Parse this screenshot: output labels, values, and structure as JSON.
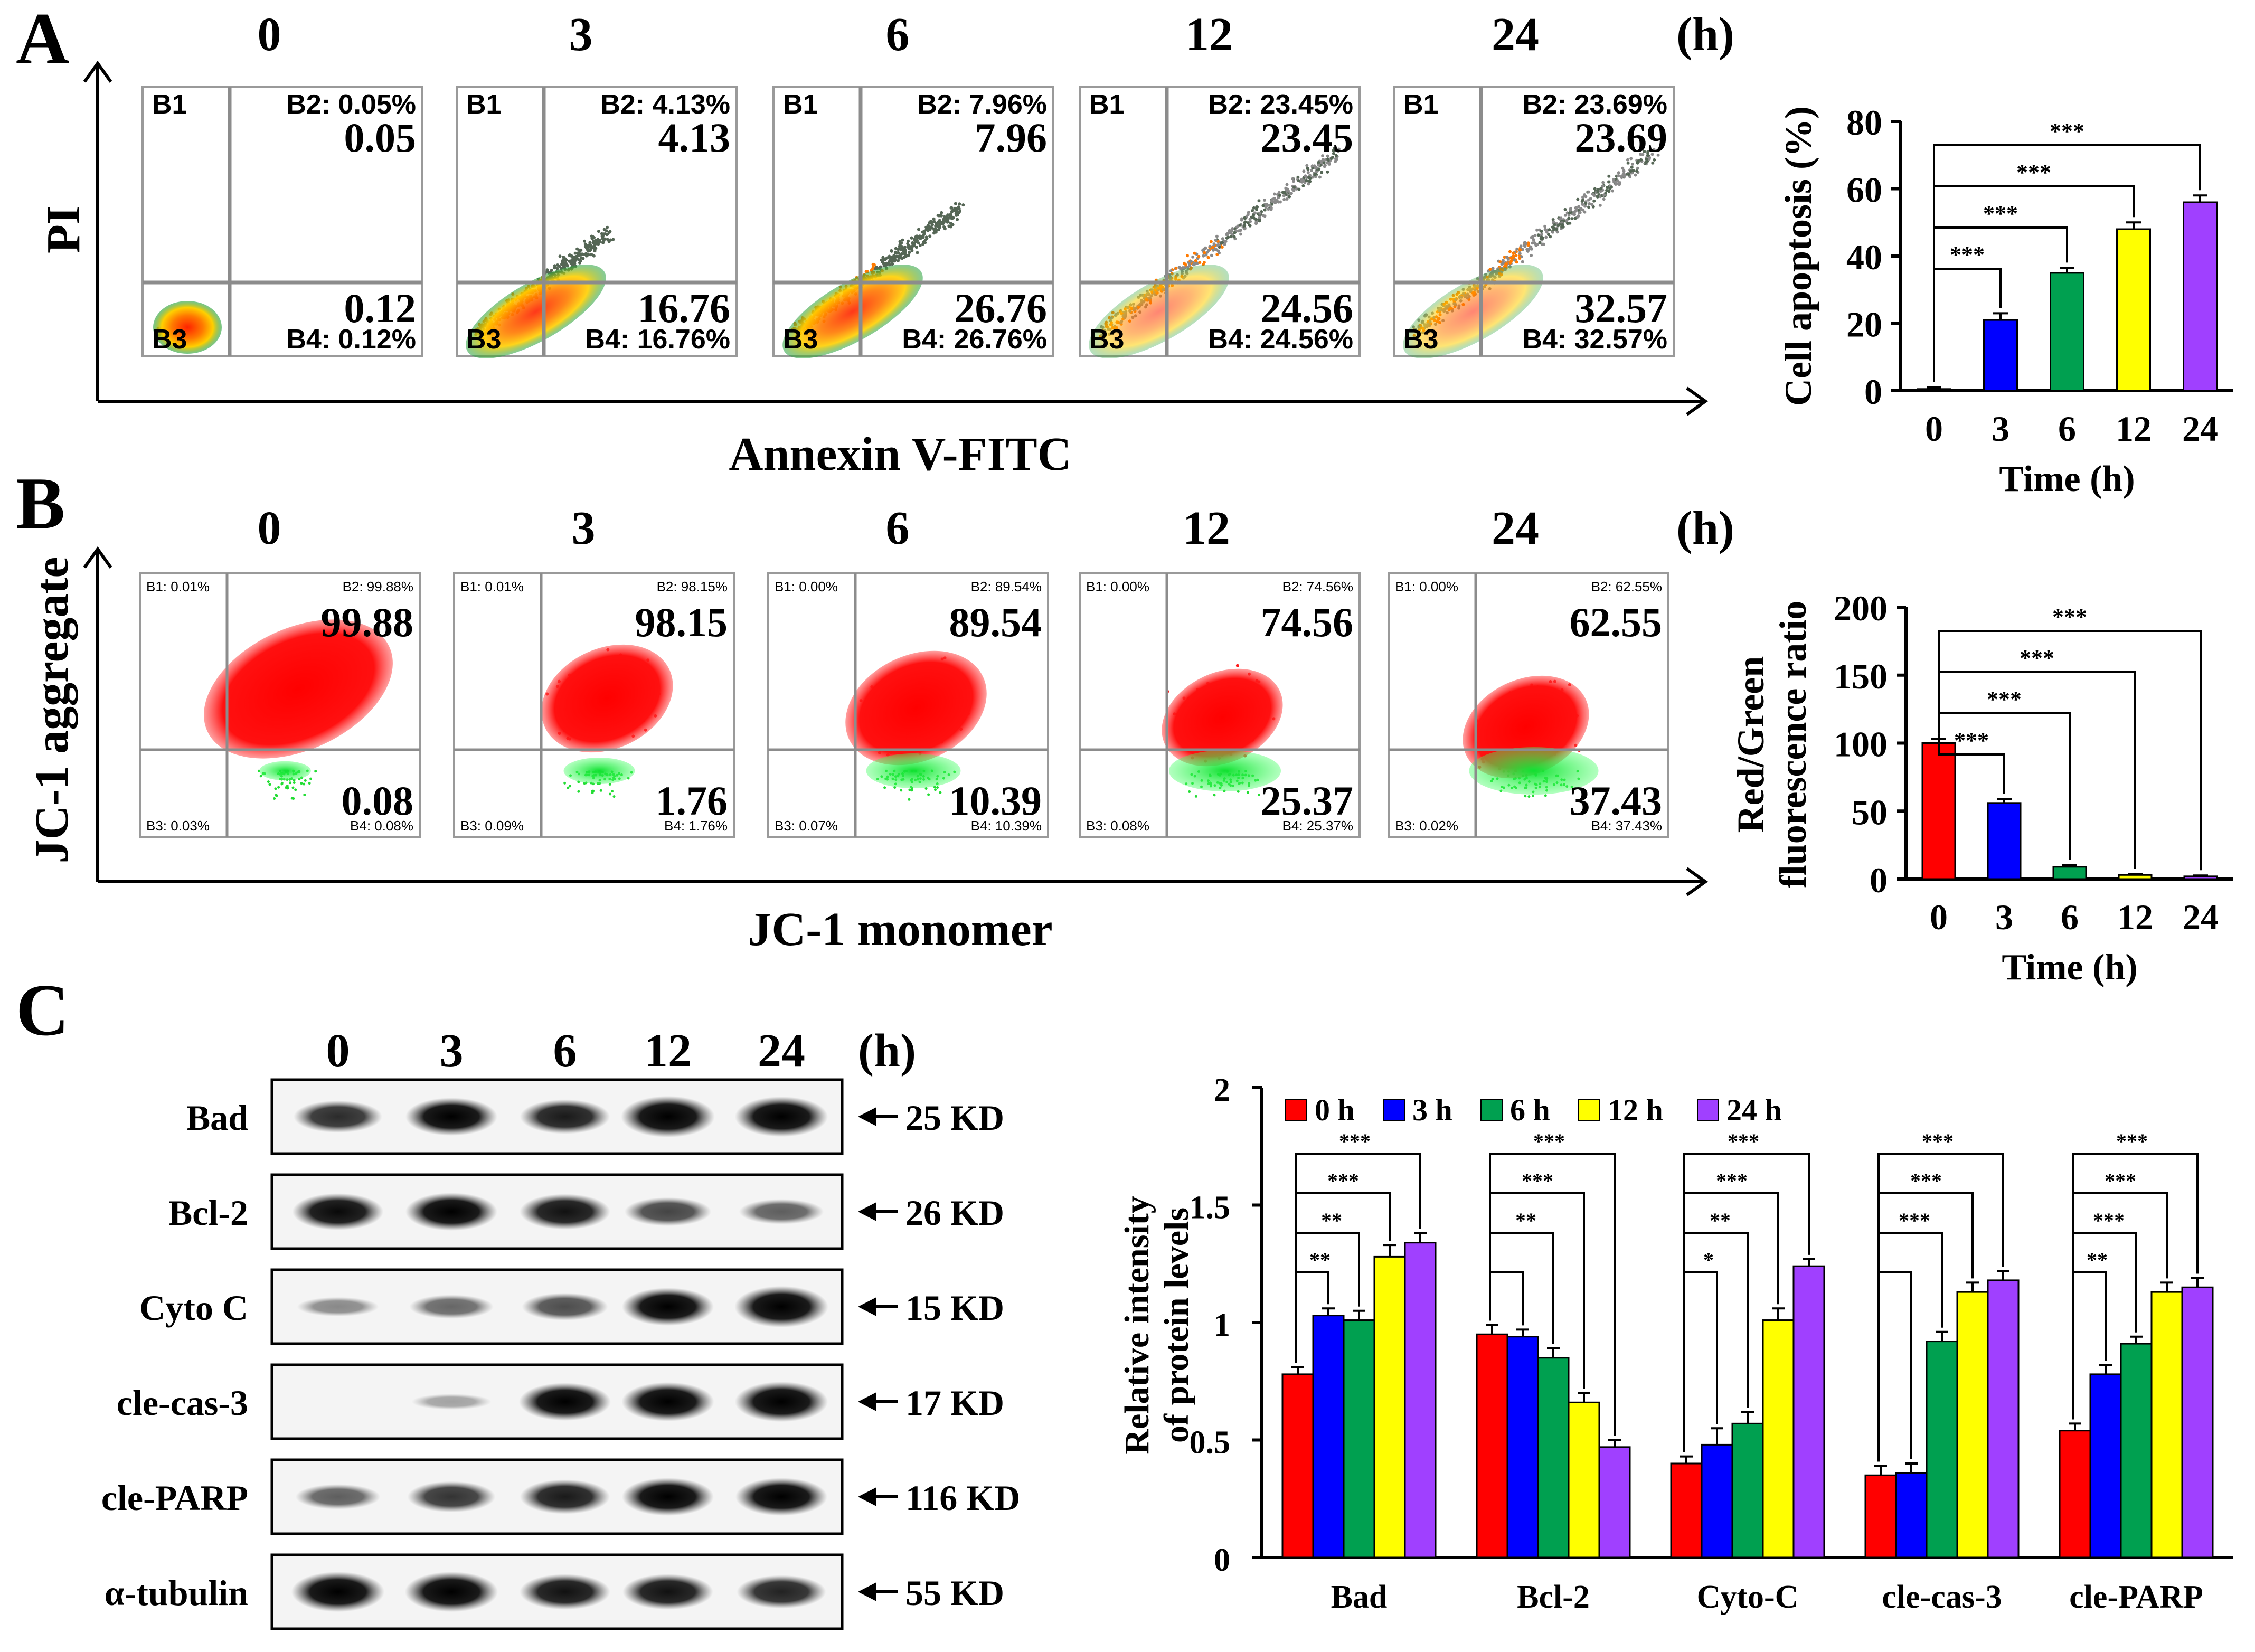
{
  "panel_letters": [
    "A",
    "B",
    "C"
  ],
  "panel_a": {
    "time_labels": [
      "0",
      "3",
      "6",
      "12",
      "24"
    ],
    "unit": "(h)",
    "y_axis_label": "PI",
    "x_axis_label": "Annexin V-FITC",
    "plots": [
      {
        "b1": "B1",
        "b2": "B2: 0.05%",
        "b3": "B3",
        "b4": "B4: 0.12%",
        "upper": "0.05",
        "lower": "0.12"
      },
      {
        "b1": "B1",
        "b2": "B2: 4.13%",
        "b3": "B3",
        "b4": "B4: 16.76%",
        "upper": "4.13",
        "lower": "16.76"
      },
      {
        "b1": "B1",
        "b2": "B2: 7.96%",
        "b3": "B3",
        "b4": "B4: 26.76%",
        "upper": "7.96",
        "lower": "26.76"
      },
      {
        "b1": "B1",
        "b2": "B2: 23.45%",
        "b3": "B3",
        "b4": "B4: 24.56%",
        "upper": "23.45",
        "lower": "24.56"
      },
      {
        "b1": "B1",
        "b2": "B2: 23.69%",
        "b3": "B3",
        "b4": "B4: 32.57%",
        "upper": "23.69",
        "lower": "32.57"
      }
    ]
  },
  "panel_b": {
    "time_labels": [
      "0",
      "3",
      "6",
      "12",
      "24"
    ],
    "unit": "(h)",
    "y_axis_label": "JC-1 aggregate",
    "x_axis_label": "JC-1 monomer",
    "plots": [
      {
        "b1": "B1: 0.01%",
        "b2": "B2: 99.88%",
        "b3": "B3: 0.03%",
        "b4": "B4: 0.08%",
        "upper": "99.88",
        "lower": "0.08"
      },
      {
        "b1": "B1: 0.01%",
        "b2": "B2: 98.15%",
        "b3": "B3: 0.09%",
        "b4": "B4: 1.76%",
        "upper": "98.15",
        "lower": "1.76"
      },
      {
        "b1": "B1: 0.00%",
        "b2": "B2: 89.54%",
        "b3": "B3: 0.07%",
        "b4": "B4: 10.39%",
        "upper": "89.54",
        "lower": "10.39"
      },
      {
        "b1": "B1: 0.00%",
        "b2": "B2: 74.56%",
        "b3": "B3: 0.08%",
        "b4": "B4: 25.37%",
        "upper": "74.56",
        "lower": "25.37"
      },
      {
        "b1": "B1: 0.00%",
        "b2": "B2: 62.55%",
        "b3": "B3: 0.02%",
        "b4": "B4: 37.43%",
        "upper": "62.55",
        "lower": "37.43"
      }
    ]
  },
  "panel_c": {
    "time_labels": [
      "0",
      "3",
      "6",
      "12",
      "24"
    ],
    "unit": "(h)",
    "blots": [
      {
        "label": "Bad",
        "size": "25 KD"
      },
      {
        "label": "Bcl-2",
        "size": "26 KD"
      },
      {
        "label": "Cyto C",
        "size": "15 KD"
      },
      {
        "label": "cle-cas-3",
        "size": "17 KD"
      },
      {
        "label": "cle-PARP",
        "size": "116 KD"
      },
      {
        "label": "α-tubulin",
        "size": "55 KD"
      }
    ]
  },
  "colors": {
    "h0": "#ff0000",
    "h3": "#0000ff",
    "h6": "#00a050",
    "h12": "#ffff00",
    "h24": "#a040ff",
    "gfp_red": "#ff1a1a",
    "gfp_green": "#22dd33"
  },
  "chart_data": [
    {
      "type": "bar",
      "title": "",
      "xlabel": "Time (h)",
      "ylabel": "Cell apoptosis (%)",
      "categories": [
        "0",
        "3",
        "6",
        "12",
        "24"
      ],
      "values": [
        0.5,
        21,
        35,
        48,
        56
      ],
      "errors": [
        0.5,
        2,
        1.5,
        2,
        2
      ],
      "ylim": [
        0,
        80
      ],
      "yticks": [
        "0",
        "20",
        "40",
        "60",
        "80"
      ],
      "significance": [
        {
          "pair": [
            "0",
            "3"
          ],
          "label": "***"
        },
        {
          "pair": [
            "0",
            "6"
          ],
          "label": "***"
        },
        {
          "pair": [
            "0",
            "12"
          ],
          "label": "***"
        },
        {
          "pair": [
            "0",
            "24"
          ],
          "label": "***"
        }
      ]
    },
    {
      "type": "bar",
      "title": "",
      "xlabel": "Time (h)",
      "ylabel_lines": [
        "Red/Green",
        "fluorescence ratio"
      ],
      "categories": [
        "0",
        "3",
        "6",
        "12",
        "24"
      ],
      "values": [
        100,
        56,
        9,
        3,
        2
      ],
      "errors": [
        3,
        3,
        1.5,
        0.8,
        0.6
      ],
      "ylim": [
        0,
        200
      ],
      "yticks": [
        "0",
        "50",
        "100",
        "150",
        "200"
      ],
      "significance": [
        {
          "pair": [
            "0",
            "3"
          ],
          "label": "***"
        },
        {
          "pair": [
            "0",
            "6"
          ],
          "label": "***"
        },
        {
          "pair": [
            "0",
            "12"
          ],
          "label": "***"
        },
        {
          "pair": [
            "0",
            "24"
          ],
          "label": "***"
        }
      ]
    },
    {
      "type": "bar",
      "title": "",
      "xlabel": "",
      "ylabel_lines": [
        "Relative intensity",
        "of protein levels"
      ],
      "categories": [
        "Bad",
        "Bcl-2",
        "Cyto-C",
        "cle-cas-3",
        "cle-PARP"
      ],
      "ylim": [
        0,
        2
      ],
      "yticks": [
        "0",
        "0.5",
        "1",
        "1.5",
        "2"
      ],
      "legend_position": "top",
      "series": [
        {
          "name": "0 h",
          "values": [
            0.78,
            0.95,
            0.4,
            0.35,
            0.54
          ],
          "errors": [
            0.03,
            0.04,
            0.03,
            0.04,
            0.03
          ]
        },
        {
          "name": "3 h",
          "values": [
            1.03,
            0.94,
            0.48,
            0.36,
            0.78
          ],
          "errors": [
            0.03,
            0.03,
            0.07,
            0.04,
            0.04
          ]
        },
        {
          "name": "6 h",
          "values": [
            1.01,
            0.85,
            0.57,
            0.92,
            0.91
          ],
          "errors": [
            0.04,
            0.04,
            0.05,
            0.04,
            0.03
          ]
        },
        {
          "name": "12 h",
          "values": [
            1.28,
            0.66,
            1.01,
            1.13,
            1.13
          ],
          "errors": [
            0.05,
            0.04,
            0.05,
            0.04,
            0.04
          ]
        },
        {
          "name": "24 h",
          "values": [
            1.34,
            0.47,
            1.24,
            1.18,
            1.15
          ],
          "errors": [
            0.04,
            0.03,
            0.03,
            0.04,
            0.04
          ]
        }
      ],
      "significance": [
        {
          "group": "Bad",
          "labels": [
            "**",
            "**",
            "***",
            "***"
          ]
        },
        {
          "group": "Bcl-2",
          "labels": [
            "",
            "**",
            "***",
            "***"
          ]
        },
        {
          "group": "Cyto-C",
          "labels": [
            "*",
            "**",
            "***",
            "***"
          ]
        },
        {
          "group": "cle-cas-3",
          "labels": [
            "",
            "***",
            "***",
            "***"
          ]
        },
        {
          "group": "cle-PARP",
          "labels": [
            "**",
            "***",
            "***",
            "***"
          ]
        }
      ]
    }
  ]
}
